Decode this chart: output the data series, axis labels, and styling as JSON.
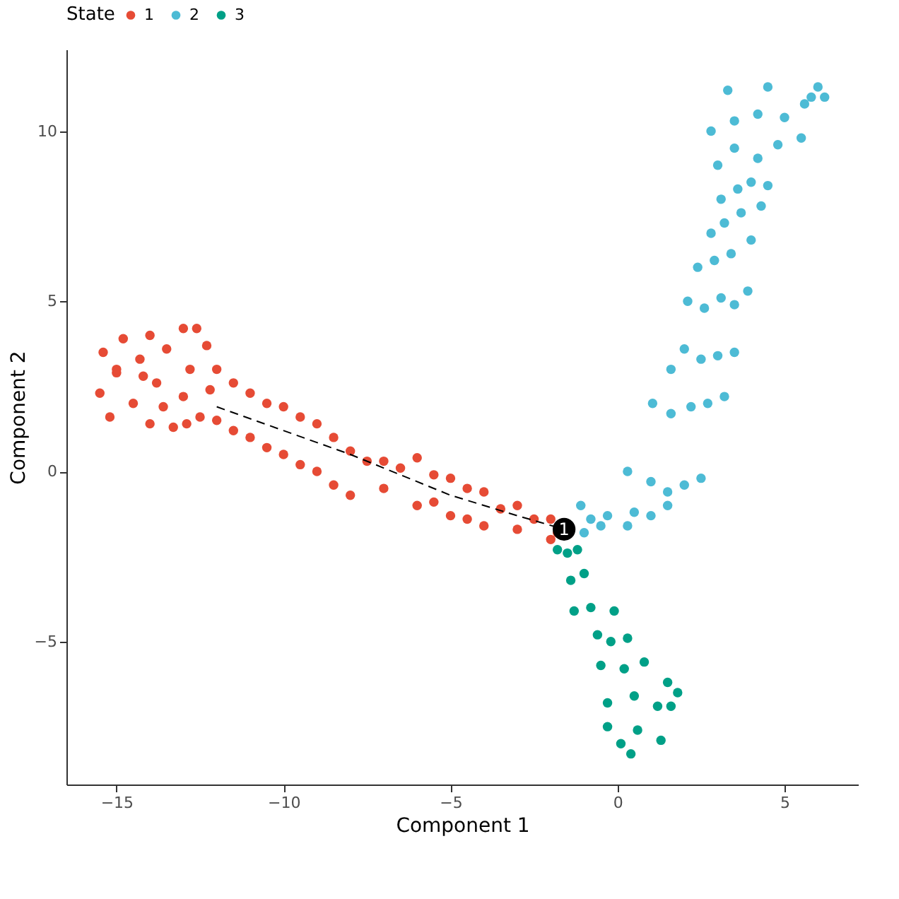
{
  "chart_data": {
    "type": "scatter",
    "xlabel": "Component 1",
    "ylabel": "Component 2",
    "legend_title": "State",
    "legend": "top",
    "grid": false,
    "marker": "circle",
    "xlim": [
      -16.5,
      7.2
    ],
    "ylim": [
      -9.2,
      12.4
    ],
    "xticks": [
      -15,
      -10,
      -5,
      0,
      5
    ],
    "yticks": [
      -5,
      0,
      5,
      10
    ],
    "series": [
      {
        "name": "1",
        "color": "#e64b35",
        "x": [
          -15.4,
          -15.5,
          -15.2,
          -15.0,
          -14.8,
          -14.5,
          -14.3,
          -14.0,
          -14.0,
          -13.8,
          -13.5,
          -13.3,
          -13.0,
          -13.0,
          -12.8,
          -12.6,
          -12.5,
          -12.3,
          -12.2,
          -14.2,
          -13.6,
          -15.0,
          -12.9,
          -12.0,
          -12.0,
          -11.5,
          -11.5,
          -11.0,
          -11.0,
          -10.5,
          -10.5,
          -10.0,
          -10.0,
          -9.5,
          -9.5,
          -9.0,
          -9.0,
          -8.5,
          -8.5,
          -8.0,
          -8.0,
          -7.5,
          -7.0,
          -7.0,
          -6.5,
          -6.0,
          -6.0,
          -5.5,
          -5.5,
          -5.0,
          -5.0,
          -4.5,
          -4.5,
          -4.0,
          -4.0,
          -3.5,
          -3.0,
          -3.0,
          -2.5,
          -2.0,
          -2.0,
          -1.8
        ],
        "values": [
          3.5,
          2.3,
          1.6,
          2.9,
          3.9,
          2.0,
          3.3,
          1.4,
          4.0,
          2.6,
          3.6,
          1.3,
          4.2,
          2.2,
          3.0,
          4.2,
          1.6,
          3.7,
          2.4,
          2.8,
          1.9,
          3.0,
          1.4,
          3.0,
          1.5,
          2.6,
          1.2,
          2.3,
          1.0,
          2.0,
          0.7,
          1.9,
          0.5,
          1.6,
          0.2,
          1.4,
          0.0,
          1.0,
          -0.4,
          0.6,
          -0.7,
          0.3,
          0.3,
          -0.5,
          0.1,
          0.4,
          -1.0,
          -0.1,
          -0.9,
          -0.2,
          -1.3,
          -0.5,
          -1.4,
          -0.6,
          -1.6,
          -1.1,
          -1.0,
          -1.7,
          -1.4,
          -1.4,
          -2.0,
          -1.8
        ]
      },
      {
        "name": "2",
        "color": "#4dbbd5",
        "x": [
          -0.8,
          -1.0,
          -0.5,
          0.3,
          -1.1,
          -0.3,
          0.5,
          1.0,
          1.5,
          0.3,
          1.0,
          1.5,
          2.0,
          2.5,
          1.05,
          1.6,
          2.2,
          2.7,
          3.2,
          1.6,
          2.0,
          2.5,
          3.0,
          3.5,
          2.1,
          2.6,
          3.1,
          3.5,
          3.9,
          2.4,
          2.9,
          3.4,
          4.0,
          2.8,
          3.2,
          3.7,
          4.3,
          3.1,
          3.6,
          4.0,
          4.5,
          3.0,
          3.5,
          4.2,
          4.8,
          5.5,
          2.8,
          3.5,
          4.2,
          5.0,
          5.6,
          6.2,
          3.3,
          4.5,
          5.8,
          6.0
        ],
        "values": [
          -1.4,
          -1.8,
          -1.6,
          -1.6,
          -1.0,
          -1.3,
          -1.2,
          -1.3,
          -1.0,
          0.0,
          -0.3,
          -0.6,
          -0.4,
          -0.2,
          2.0,
          1.7,
          1.9,
          2.0,
          2.2,
          3.0,
          3.6,
          3.3,
          3.4,
          3.5,
          5.0,
          4.8,
          5.1,
          4.9,
          5.3,
          6.0,
          6.2,
          6.4,
          6.8,
          7.0,
          7.3,
          7.6,
          7.8,
          8.0,
          8.3,
          8.5,
          8.4,
          9.0,
          9.5,
          9.2,
          9.6,
          9.8,
          10.0,
          10.3,
          10.5,
          10.4,
          10.8,
          11.0,
          11.2,
          11.3,
          11.0,
          11.3
        ]
      },
      {
        "name": "3",
        "color": "#00a087",
        "x": [
          -1.8,
          -1.5,
          -1.2,
          -1.4,
          -1.0,
          -1.3,
          -0.8,
          -0.1,
          -0.6,
          -0.2,
          0.3,
          -0.5,
          0.2,
          0.8,
          1.5,
          -0.3,
          0.5,
          1.2,
          1.8,
          0.1,
          0.6,
          1.3,
          0.4,
          -0.3,
          1.6
        ],
        "values": [
          -2.3,
          -2.4,
          -2.3,
          -3.2,
          -3.0,
          -4.1,
          -4.0,
          -4.1,
          -4.8,
          -5.0,
          -4.9,
          -5.7,
          -5.8,
          -5.6,
          -6.2,
          -6.8,
          -6.6,
          -6.9,
          -6.5,
          -8.0,
          -7.6,
          -7.9,
          -8.3,
          -7.5,
          -6.9
        ]
      },
      {
        "type": "line",
        "color": "#000000",
        "line_style": "dashed",
        "marker": "none",
        "x": [
          -12.0,
          -8.0,
          -5.0,
          -3.0,
          -1.6
        ],
        "values": [
          1.9,
          0.5,
          -0.7,
          -1.3,
          -1.7
        ]
      },
      {
        "color": "#000000",
        "x": [
          -1.6
        ],
        "values": [
          -1.7
        ]
      }
    ],
    "annotations": [
      {
        "text": "1",
        "x": -1.6,
        "y": -1.7
      }
    ]
  }
}
